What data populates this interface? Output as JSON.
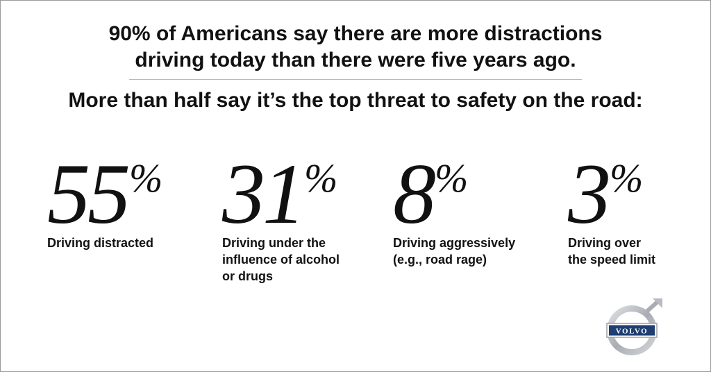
{
  "headline": {
    "line1": "90% of Americans say there are more distractions",
    "line2": "driving today than there were five years ago."
  },
  "subheadline": "More than half say it’s the top threat to safety on the road:",
  "stats": [
    {
      "value": "55",
      "unit": "%",
      "label_lines": [
        "Driving distracted"
      ]
    },
    {
      "value": "31",
      "unit": "%",
      "label_lines": [
        "Driving under the",
        "influence of alcohol",
        "or drugs"
      ]
    },
    {
      "value": "8",
      "unit": "%",
      "label_lines": [
        "Driving aggressively",
        "(e.g., road rage)"
      ]
    },
    {
      "value": "3",
      "unit": "%",
      "label_lines": [
        "Driving over",
        "the speed limit"
      ]
    }
  ],
  "logo": {
    "text": "VOLVO",
    "icon": "volvo-iron-mark-icon",
    "colors": {
      "badge": "#1f3f73",
      "ring": "#a9adb3"
    }
  }
}
